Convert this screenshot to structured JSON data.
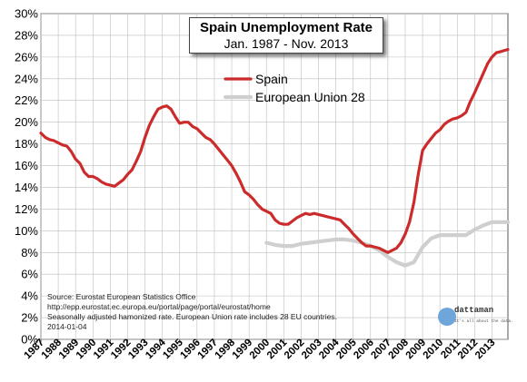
{
  "chart_data": {
    "type": "line",
    "title": "Spain Unemployment Rate",
    "subtitle": "Jan. 1987 - Nov. 2013",
    "y_ticks": [
      "0%",
      "2%",
      "4%",
      "6%",
      "8%",
      "10%",
      "12%",
      "14%",
      "16%",
      "18%",
      "20%",
      "22%",
      "24%",
      "26%",
      "28%",
      "30%"
    ],
    "ylim": [
      0,
      30
    ],
    "x_ticks": [
      "1987",
      "1988",
      "1989",
      "1990",
      "1991",
      "1992",
      "1993",
      "1994",
      "1995",
      "1996",
      "1997",
      "1998",
      "1999",
      "2000",
      "2001",
      "2002",
      "2003",
      "2004",
      "2005",
      "2006",
      "2007",
      "2008",
      "2009",
      "2010",
      "2011",
      "2012",
      "2013"
    ],
    "xlim": [
      1987.0,
      2013.92
    ],
    "grid": true,
    "legend_placement": "upper-center",
    "series": [
      {
        "name": "Spain",
        "color": "#cc2b2b",
        "x": [
          1987.0,
          1987.25,
          1987.5,
          1987.75,
          1988.0,
          1988.25,
          1988.5,
          1988.75,
          1989.0,
          1989.25,
          1989.5,
          1989.75,
          1990.0,
          1990.25,
          1990.5,
          1990.75,
          1991.0,
          1991.25,
          1991.5,
          1991.75,
          1992.0,
          1992.25,
          1992.5,
          1992.75,
          1993.0,
          1993.25,
          1993.5,
          1993.75,
          1994.0,
          1994.25,
          1994.5,
          1994.75,
          1995.0,
          1995.25,
          1995.5,
          1995.75,
          1996.0,
          1996.25,
          1996.5,
          1996.75,
          1997.0,
          1997.25,
          1997.5,
          1997.75,
          1998.0,
          1998.25,
          1998.5,
          1998.75,
          1999.0,
          1999.25,
          1999.5,
          1999.75,
          2000.0,
          2000.25,
          2000.5,
          2000.75,
          2001.0,
          2001.25,
          2001.5,
          2001.75,
          2002.0,
          2002.25,
          2002.5,
          2002.75,
          2003.0,
          2003.25,
          2003.5,
          2003.75,
          2004.0,
          2004.25,
          2004.5,
          2004.75,
          2005.0,
          2005.25,
          2005.5,
          2005.75,
          2006.0,
          2006.25,
          2006.5,
          2006.75,
          2007.0,
          2007.25,
          2007.5,
          2007.75,
          2008.0,
          2008.25,
          2008.5,
          2008.75,
          2009.0,
          2009.25,
          2009.5,
          2009.75,
          2010.0,
          2010.25,
          2010.5,
          2010.75,
          2011.0,
          2011.25,
          2011.5,
          2011.75,
          2012.0,
          2012.25,
          2012.5,
          2012.75,
          2013.0,
          2013.25,
          2013.5,
          2013.92
        ],
        "y": [
          19.0,
          18.6,
          18.4,
          18.3,
          18.1,
          17.9,
          17.8,
          17.3,
          16.6,
          16.2,
          15.4,
          15.0,
          15.0,
          14.8,
          14.5,
          14.3,
          14.2,
          14.1,
          14.4,
          14.7,
          15.2,
          15.6,
          16.4,
          17.3,
          18.6,
          19.7,
          20.5,
          21.2,
          21.4,
          21.5,
          21.2,
          20.5,
          19.9,
          20.0,
          20.0,
          19.6,
          19.4,
          19.0,
          18.6,
          18.4,
          18.0,
          17.5,
          17.0,
          16.5,
          16.0,
          15.3,
          14.5,
          13.6,
          13.3,
          12.9,
          12.4,
          12.0,
          11.8,
          11.6,
          11.0,
          10.7,
          10.6,
          10.6,
          10.9,
          11.2,
          11.4,
          11.6,
          11.5,
          11.6,
          11.5,
          11.4,
          11.3,
          11.2,
          11.1,
          11.0,
          10.6,
          10.2,
          9.7,
          9.3,
          8.9,
          8.6,
          8.6,
          8.5,
          8.4,
          8.2,
          8.0,
          8.2,
          8.4,
          8.9,
          9.7,
          10.8,
          12.6,
          15.2,
          17.4,
          18.0,
          18.5,
          19.0,
          19.3,
          19.8,
          20.1,
          20.3,
          20.4,
          20.6,
          20.9,
          21.9,
          22.7,
          23.6,
          24.5,
          25.4,
          26.0,
          26.4,
          26.5,
          26.7
        ]
      },
      {
        "name": "European Union 28",
        "color": "#cfcfcf",
        "x": [
          2000.0,
          2000.5,
          2001.0,
          2001.5,
          2002.0,
          2002.5,
          2003.0,
          2003.5,
          2004.0,
          2004.5,
          2005.0,
          2005.5,
          2006.0,
          2006.5,
          2007.0,
          2007.5,
          2008.0,
          2008.5,
          2009.0,
          2009.5,
          2010.0,
          2010.5,
          2011.0,
          2011.5,
          2012.0,
          2012.5,
          2013.0,
          2013.5,
          2013.92
        ],
        "y": [
          8.9,
          8.7,
          8.6,
          8.6,
          8.8,
          8.9,
          9.0,
          9.1,
          9.2,
          9.2,
          9.1,
          8.9,
          8.6,
          8.2,
          7.6,
          7.1,
          6.8,
          7.1,
          8.5,
          9.3,
          9.6,
          9.6,
          9.6,
          9.6,
          10.1,
          10.5,
          10.8,
          10.8,
          10.8
        ]
      }
    ]
  },
  "source_lines": [
    "Source: Eurostat European Statistics Office",
    "http://epp.eurostat.ec.europa.eu/portal/page/portal/eurostat/home",
    "Seasonally adjusted hamonized rate. European Union rate includes 28 EU countries.",
    "2014-01-04"
  ],
  "logo": {
    "name": "dattaman",
    "tagline": "It's all about the data."
  }
}
